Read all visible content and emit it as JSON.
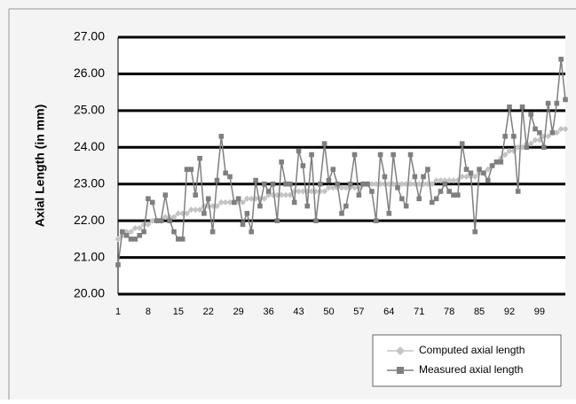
{
  "chart_data": {
    "type": "line",
    "y_label": "Axial Length (in mm)",
    "ylim": [
      20,
      27
    ],
    "yticks": [
      {
        "value": 20,
        "label": "20.00"
      },
      {
        "value": 21,
        "label": "21.00"
      },
      {
        "value": 22,
        "label": "22.00"
      },
      {
        "value": 23,
        "label": "23.00"
      },
      {
        "value": 24,
        "label": "24.00"
      },
      {
        "value": 25,
        "label": "25.00"
      },
      {
        "value": 26,
        "label": "26.00"
      },
      {
        "value": 27,
        "label": "27.00"
      }
    ],
    "grid": true,
    "legend": "bottom-right",
    "categories": [
      "1",
      null,
      null,
      null,
      null,
      null,
      null,
      "8",
      null,
      null,
      null,
      null,
      null,
      null,
      "15",
      null,
      null,
      null,
      null,
      null,
      null,
      "22",
      null,
      null,
      null,
      null,
      null,
      null,
      "29",
      null,
      null,
      null,
      null,
      null,
      null,
      "36",
      null,
      null,
      null,
      null,
      null,
      null,
      "43",
      null,
      null,
      null,
      null,
      null,
      null,
      "50",
      null,
      null,
      null,
      null,
      null,
      null,
      "57",
      null,
      null,
      null,
      null,
      null,
      null,
      "64",
      null,
      null,
      null,
      null,
      null,
      null,
      "71",
      null,
      null,
      null,
      null,
      null,
      null,
      "78",
      null,
      null,
      null,
      null,
      null,
      null,
      "85",
      null,
      null,
      null,
      null,
      null,
      null,
      "92",
      null,
      null,
      null,
      null,
      null,
      null,
      "99",
      null,
      null,
      null,
      null,
      null,
      null
    ],
    "series": [
      {
        "name": "Computed axial length",
        "color": "#c4c4c4",
        "marker": "diamond",
        "values": [
          21.5,
          21.6,
          21.7,
          21.7,
          21.8,
          21.8,
          21.9,
          21.9,
          22.0,
          22.0,
          22.0,
          22.1,
          22.1,
          22.1,
          22.2,
          22.2,
          22.2,
          22.3,
          22.3,
          22.3,
          22.4,
          22.4,
          22.4,
          22.4,
          22.5,
          22.5,
          22.5,
          22.5,
          22.5,
          22.5,
          22.6,
          22.6,
          22.6,
          22.6,
          22.6,
          22.7,
          22.7,
          22.7,
          22.7,
          22.7,
          22.7,
          22.8,
          22.8,
          22.8,
          22.8,
          22.8,
          22.8,
          22.8,
          22.8,
          22.9,
          22.9,
          22.9,
          22.9,
          22.9,
          22.9,
          22.9,
          22.9,
          23.0,
          23.0,
          23.0,
          23.0,
          23.0,
          23.0,
          23.0,
          23.0,
          23.0,
          23.0,
          23.0,
          23.0,
          23.0,
          23.0,
          23.0,
          23.0,
          23.0,
          23.1,
          23.1,
          23.1,
          23.1,
          23.1,
          23.1,
          23.2,
          23.2,
          23.2,
          23.2,
          23.3,
          23.3,
          23.4,
          23.5,
          23.6,
          23.7,
          23.8,
          23.9,
          23.9,
          24.0,
          24.0,
          24.1,
          24.1,
          24.2,
          24.2,
          24.3,
          24.3,
          24.4,
          24.4,
          24.5,
          24.5
        ]
      },
      {
        "name": "Measured axial length",
        "color": "#7f7f7f",
        "marker": "square",
        "values": [
          20.8,
          21.7,
          21.6,
          21.5,
          21.5,
          21.6,
          21.7,
          22.6,
          22.5,
          22.0,
          22.0,
          22.7,
          22.0,
          21.7,
          21.5,
          21.5,
          23.4,
          23.4,
          22.7,
          23.7,
          22.2,
          22.6,
          21.7,
          23.1,
          24.3,
          23.3,
          23.2,
          22.5,
          22.6,
          21.9,
          22.2,
          21.7,
          23.1,
          22.4,
          23.0,
          22.8,
          23.0,
          22.0,
          23.6,
          23.0,
          23.0,
          22.5,
          23.9,
          23.5,
          22.4,
          23.8,
          22.0,
          23.0,
          24.1,
          23.1,
          23.4,
          23.0,
          22.2,
          22.4,
          23.0,
          23.8,
          22.7,
          23.0,
          23.0,
          22.8,
          22.0,
          23.8,
          23.2,
          22.2,
          23.8,
          22.9,
          22.6,
          22.4,
          23.8,
          23.2,
          22.6,
          23.2,
          23.4,
          22.5,
          22.6,
          22.8,
          23.0,
          22.8,
          22.7,
          22.7,
          24.1,
          23.4,
          23.3,
          21.7,
          23.4,
          23.3,
          23.1,
          23.5,
          23.6,
          23.6,
          24.3,
          25.1,
          24.3,
          22.8,
          25.1,
          24.0,
          24.9,
          24.5,
          24.4,
          24.0,
          25.2,
          24.4,
          25.2,
          26.4,
          25.3
        ]
      }
    ]
  }
}
